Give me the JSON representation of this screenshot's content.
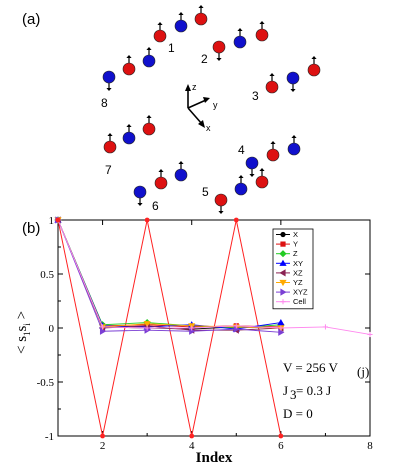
{
  "panels": {
    "a": "(a)",
    "b": "(b)"
  },
  "spin_diagram": {
    "groups": [
      "1",
      "2",
      "3",
      "4",
      "5",
      "6",
      "7",
      "8"
    ],
    "axes": [
      "z",
      "y",
      "x"
    ],
    "colors": {
      "red": "#dd1111",
      "blue": "#1010cc"
    }
  },
  "chart_data": {
    "type": "line",
    "xlabel": "Index",
    "ylabel": "< s",
    "ylabel_sub1": "1",
    "ylabel_mid": "s",
    "ylabel_sub2": "i",
    "ylabel_end": " >",
    "xlim": [
      1,
      8
    ],
    "ylim": [
      -1,
      1
    ],
    "xticks": [
      "2",
      "4",
      "6",
      "8"
    ],
    "yticks": [
      "1",
      "0.5",
      "0",
      "-0.5",
      "-1"
    ],
    "legend_location": "upper right",
    "series": [
      {
        "name": "X",
        "color": "#000000",
        "marker": "circle",
        "x": [
          1,
          2,
          3,
          4,
          5,
          6
        ],
        "y": [
          1,
          0.01,
          0.0,
          -0.01,
          0.01,
          0.0
        ]
      },
      {
        "name": "Y",
        "color": "#dd1111",
        "marker": "square",
        "x": [
          1,
          2,
          3,
          4,
          5,
          6
        ],
        "y": [
          1,
          0.02,
          0.03,
          0.01,
          0.02,
          0.01
        ]
      },
      {
        "name": "Z",
        "color": "#22cc22",
        "marker": "diamond",
        "x": [
          1,
          2,
          3,
          4,
          5,
          6
        ],
        "y": [
          1,
          0.03,
          0.05,
          0.02,
          0.0,
          0.03
        ]
      },
      {
        "name": "XY",
        "color": "#0000ff",
        "marker": "triangle",
        "x": [
          1,
          2,
          3,
          4,
          5,
          6
        ],
        "y": [
          1,
          0.02,
          0.01,
          0.03,
          -0.01,
          0.05
        ]
      },
      {
        "name": "XZ",
        "color": "#8b2252",
        "marker": "tri-left",
        "x": [
          1,
          2,
          3,
          4,
          5,
          6
        ],
        "y": [
          1,
          0.0,
          0.02,
          -0.02,
          -0.02,
          0.0
        ]
      },
      {
        "name": "YZ",
        "color": "#ffaa00",
        "marker": "tri-down",
        "x": [
          1,
          2,
          3,
          4,
          5,
          6
        ],
        "y": [
          1,
          0.01,
          0.04,
          0.02,
          0.01,
          0.0
        ]
      },
      {
        "name": "XYZ",
        "color": "#7b3fd4",
        "marker": "tri-right",
        "x": [
          1,
          2,
          3,
          4,
          5,
          6
        ],
        "y": [
          1,
          -0.03,
          -0.02,
          -0.03,
          -0.01,
          -0.04
        ]
      },
      {
        "name": "Cell",
        "color": "#ff88ee",
        "marker": "plus",
        "x": [
          1,
          2,
          3,
          4,
          5,
          6,
          7,
          8
        ],
        "y": [
          1,
          0.01,
          0.0,
          0.0,
          0.02,
          0.0,
          0.01,
          -0.06
        ]
      },
      {
        "name": "",
        "color": "#ff2222",
        "marker": "none",
        "x": [
          1,
          2,
          3,
          4,
          5,
          6
        ],
        "y": [
          1,
          -1,
          1,
          -1,
          1,
          -1
        ]
      }
    ],
    "annotations": {
      "V": "V = 256 V",
      "V_sub": "(j)",
      "J3": "J",
      "J3_sub": "3",
      "J3_rest": " = 0.3 J",
      "D": "D = 0"
    }
  }
}
